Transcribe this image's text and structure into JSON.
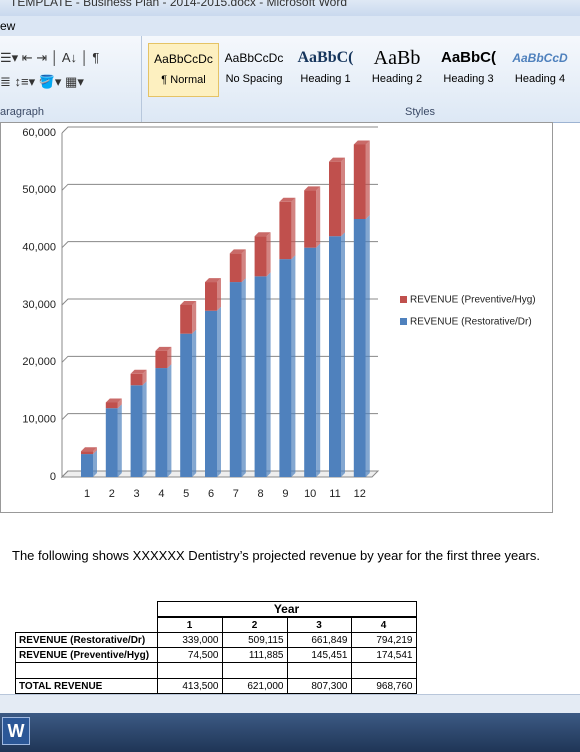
{
  "window": {
    "title": "TEMPLATE - Business Plan - 2014-2015.docx - Microsoft Word",
    "tab": "ew"
  },
  "ribbon": {
    "paragraph_group": "aragraph",
    "styles_group": "Styles",
    "styles": [
      {
        "preview": "AaBbCcDc",
        "name": "¶ Normal"
      },
      {
        "preview": "AaBbCcDc",
        "name": "No Spacing"
      },
      {
        "preview": "AaBbC(",
        "name": "Heading 1"
      },
      {
        "preview": "AaBb",
        "name": "Heading 2"
      },
      {
        "preview": "AaBbC(",
        "name": "Heading 3"
      },
      {
        "preview": "AaBbCcD",
        "name": "Heading 4"
      }
    ]
  },
  "chart_data": {
    "type": "bar",
    "stacked": true,
    "categories": [
      "1",
      "2",
      "3",
      "4",
      "5",
      "6",
      "7",
      "8",
      "9",
      "10",
      "11",
      "12"
    ],
    "series": [
      {
        "name": "REVENUE (Restorative/Dr)",
        "color": "#4f81bd",
        "values": [
          4000,
          12000,
          16000,
          19000,
          25000,
          29000,
          34000,
          35000,
          38000,
          40000,
          42000,
          45000
        ]
      },
      {
        "name": "REVENUE (Preventive/Hyg)",
        "color": "#c0504d",
        "values": [
          500,
          1000,
          2000,
          3000,
          5000,
          5000,
          5000,
          7000,
          10000,
          10000,
          13000,
          13000
        ]
      }
    ],
    "ylim": [
      0,
      60000
    ],
    "yticks": [
      0,
      {
        "value": 10000,
        "label": "10,000"
      },
      {
        "value": 20000,
        "label": "20,000"
      },
      {
        "value": 30000,
        "label": "30,000"
      },
      {
        "value": 40000,
        "label": "40,000"
      },
      {
        "value": 50000,
        "label": "50,000"
      },
      {
        "value": 60000,
        "label": "60,000"
      }
    ],
    "grid": true,
    "legend": "right"
  },
  "paragraph": "The following shows XXXXXX Dentistry’s projected revenue by year for the first three years.",
  "table": {
    "group_header": "Year",
    "columns": [
      "1",
      "2",
      "3",
      "4"
    ],
    "rows": [
      [
        "REVENUE (Restorative/Dr)",
        "339,000",
        "509,115",
        "661,849",
        "794,219"
      ],
      [
        "REVENUE (Preventive/Hyg)",
        "74,500",
        "111,885",
        "145,451",
        "174,541"
      ],
      [
        "TOTAL REVENUE",
        "413,500",
        "621,000",
        "807,300",
        "968,760"
      ]
    ]
  }
}
